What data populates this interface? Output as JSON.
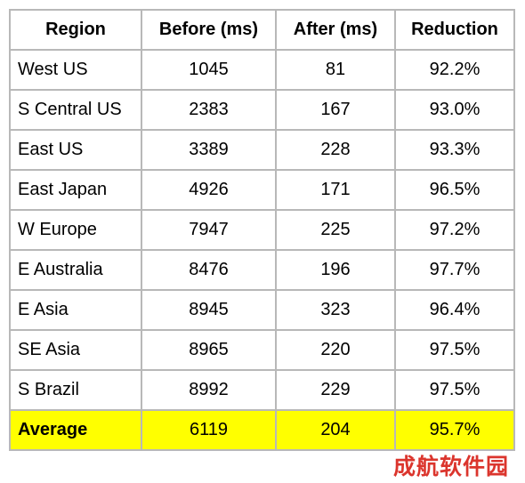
{
  "table": {
    "headers": [
      "Region",
      "Before (ms)",
      "After (ms)",
      "Reduction"
    ],
    "rows": [
      [
        "West US",
        "1045",
        "81",
        "92.2%"
      ],
      [
        "S Central US",
        "2383",
        "167",
        "93.0%"
      ],
      [
        "East US",
        "3389",
        "228",
        "93.3%"
      ],
      [
        "East Japan",
        "4926",
        "171",
        "96.5%"
      ],
      [
        "W Europe",
        "7947",
        "225",
        "97.2%"
      ],
      [
        "E Australia",
        "8476",
        "196",
        "97.7%"
      ],
      [
        "E Asia",
        "8945",
        "323",
        "96.4%"
      ],
      [
        "SE Asia",
        "8965",
        "220",
        "97.5%"
      ],
      [
        "S Brazil",
        "8992",
        "229",
        "97.5%"
      ]
    ],
    "average": [
      "Average",
      "6119",
      "204",
      "95.7%"
    ],
    "highlight_color": "#ffff00"
  },
  "watermark": {
    "text": "成航软件园",
    "color": "#d9241c"
  }
}
